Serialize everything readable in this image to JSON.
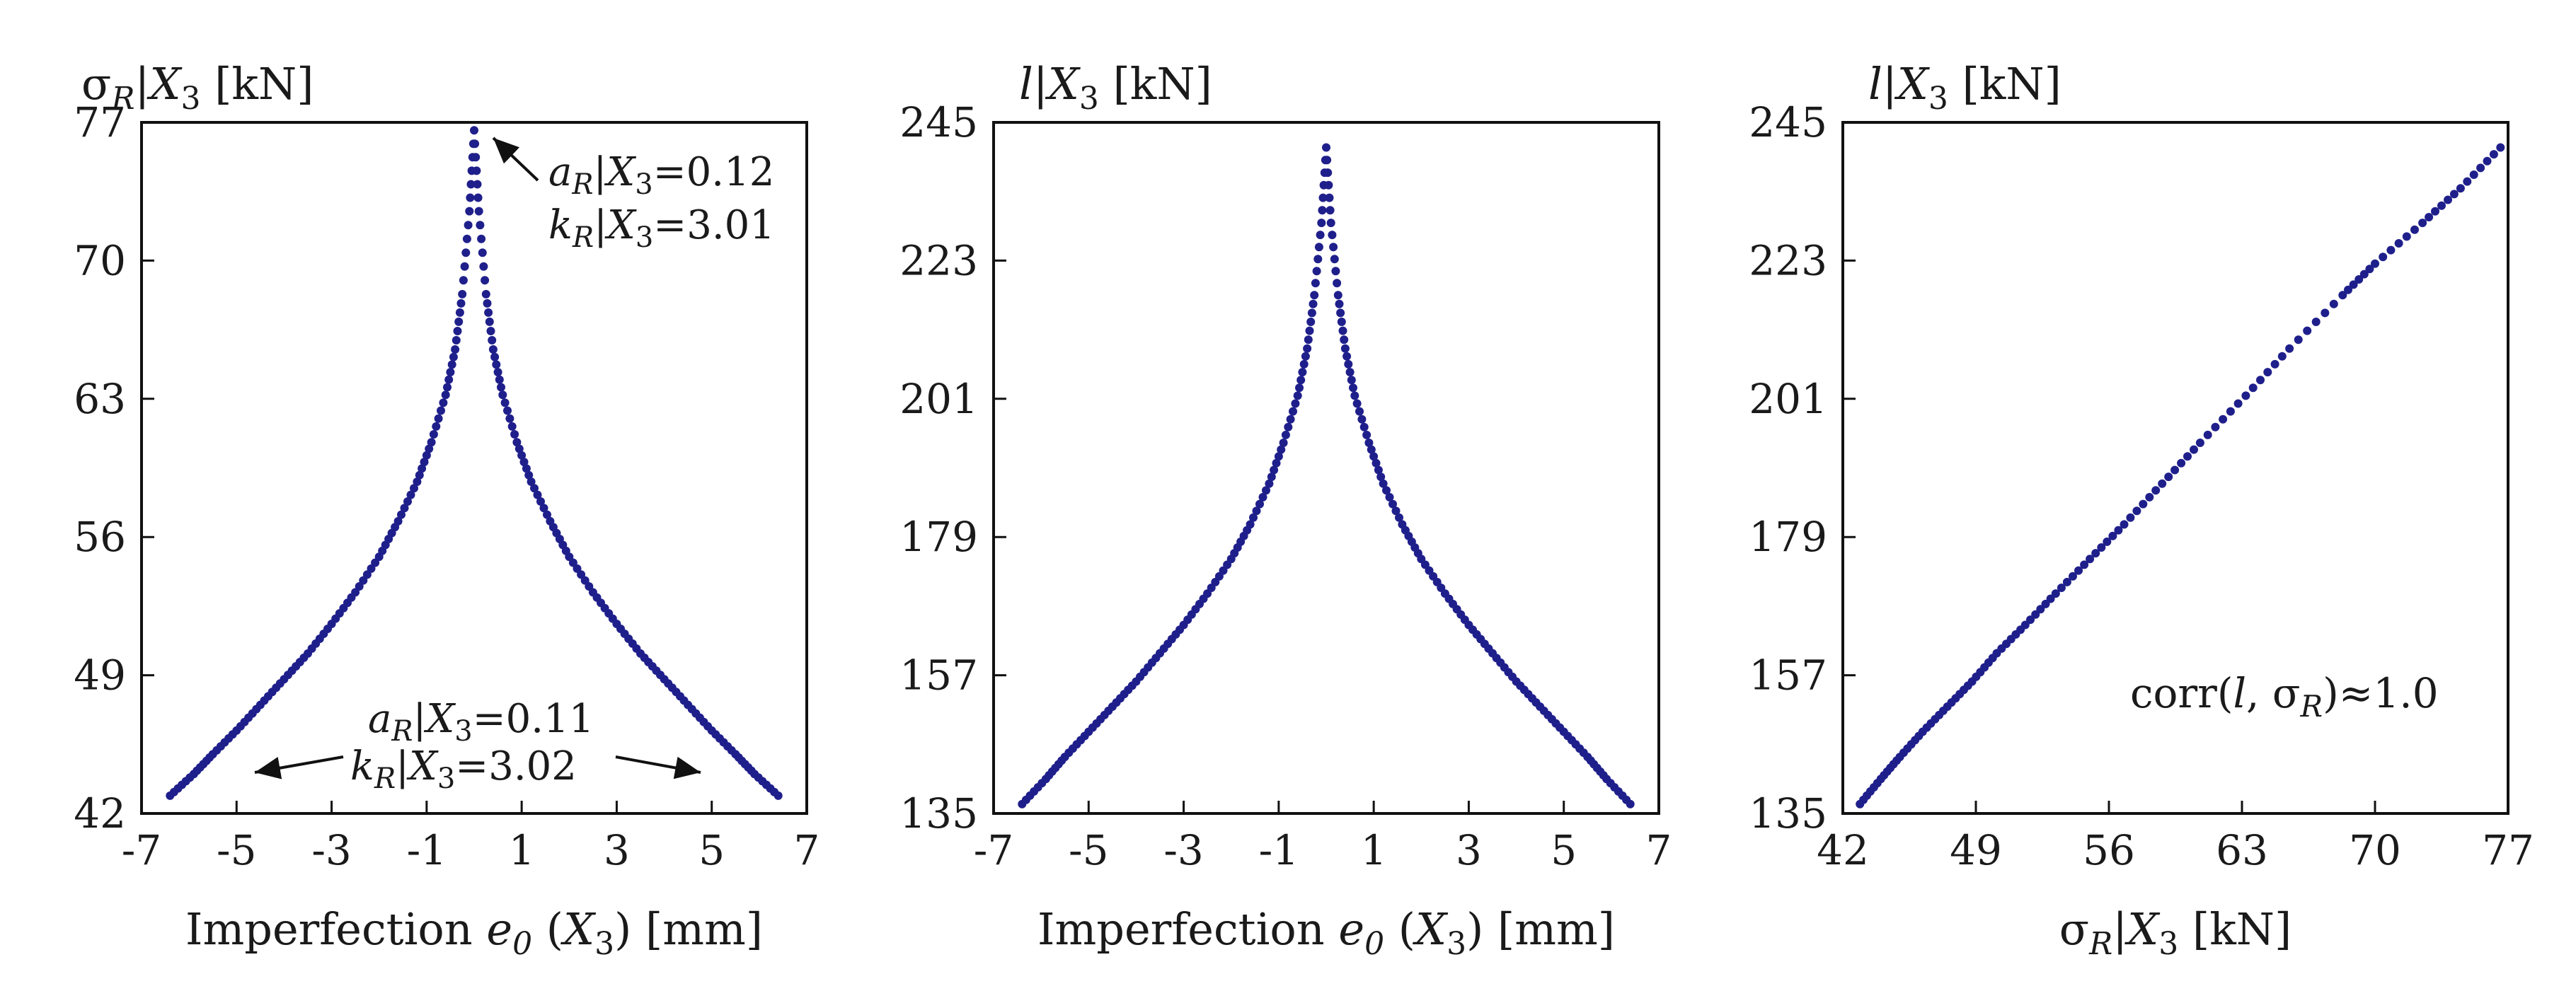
{
  "style": {
    "marker_color": "#1f1f8c",
    "axis_color": "#111111"
  },
  "chart_data": [
    {
      "type": "scatter",
      "title": "",
      "xlabel": "Imperfection e0 (X3) [mm]",
      "xlabel_parts": {
        "prefix": "Imperfection ",
        "var": "e",
        "sub": "0",
        "mid": " (",
        "var2": "X",
        "sub2": "3",
        "suffix": ") [mm]"
      },
      "ylabel": "σR|X3 [kN]",
      "ylabel_parts": {
        "prefix": "σ",
        "sub": "R",
        "bar": "|",
        "var": "X",
        "sub2": "3",
        "suffix": " [kN]"
      },
      "xlim": [
        -7,
        7
      ],
      "ylim": [
        42,
        77
      ],
      "xticks": [
        "-7",
        "-5",
        "-3",
        "-1",
        "1",
        "3",
        "5",
        "7"
      ],
      "yticks": [
        "42",
        "49",
        "56",
        "63",
        "70",
        "77"
      ],
      "grid": false,
      "series": [
        {
          "x": [
            -6.4,
            -5.9,
            -5.5,
            -5.0,
            -4.5,
            -4.0,
            -3.5,
            -3.0,
            -2.5,
            -2.0,
            -1.6,
            -1.2,
            -0.9,
            -0.6,
            -0.4,
            -0.25,
            -0.1,
            0.0,
            0.1,
            0.25,
            0.4,
            0.6,
            0.9,
            1.2,
            1.6,
            2.0,
            2.5,
            3.0,
            3.5,
            4.0,
            4.5,
            5.0,
            5.5,
            5.9,
            6.4
          ],
          "y": [
            42.9,
            44.0,
            45.0,
            46.2,
            47.5,
            48.8,
            50.1,
            51.6,
            53.2,
            55.0,
            56.8,
            58.8,
            60.8,
            63.2,
            65.5,
            68.3,
            72.5,
            76.6,
            72.5,
            68.3,
            65.5,
            63.2,
            60.8,
            58.8,
            56.8,
            55.0,
            53.2,
            51.6,
            50.1,
            48.8,
            47.5,
            46.2,
            45.0,
            44.0,
            42.9
          ]
        }
      ],
      "annotations": [
        {
          "lines": [
            {
              "var": "a",
              "sub": "R",
              "bar": "|",
              "var2": "X",
              "sub2": "3",
              "val": "=0.12"
            },
            {
              "var": "k",
              "sub": "R",
              "bar": "|",
              "var2": "X",
              "sub2": "3",
              "val": "=3.01"
            }
          ]
        },
        {
          "lines": [
            {
              "var": "a",
              "sub": "R",
              "bar": "|",
              "var2": "X",
              "sub2": "3",
              "val": "=0.11"
            },
            {
              "var": "k",
              "sub": "R",
              "bar": "|",
              "var2": "X",
              "sub2": "3",
              "val": "=3.02"
            }
          ]
        }
      ]
    },
    {
      "type": "scatter",
      "title": "",
      "xlabel": "Imperfection e0 (X3) [mm]",
      "xlabel_parts": {
        "prefix": "Imperfection ",
        "var": "e",
        "sub": "0",
        "mid": " (",
        "var2": "X",
        "sub2": "3",
        "suffix": ") [mm]"
      },
      "ylabel": "l|X3 [kN]",
      "ylabel_parts": {
        "var": "l",
        "bar": "|",
        "var2": "X",
        "sub2": "3",
        "suffix": " [kN]"
      },
      "xlim": [
        -7,
        7
      ],
      "ylim": [
        135,
        245
      ],
      "xticks": [
        "-7",
        "-5",
        "-3",
        "-1",
        "1",
        "3",
        "5",
        "7"
      ],
      "yticks": [
        "135",
        "157",
        "179",
        "201",
        "223",
        "245"
      ],
      "grid": false,
      "series": [
        {
          "x": [
            -6.4,
            -5.9,
            -5.5,
            -5.0,
            -4.5,
            -4.0,
            -3.5,
            -3.0,
            -2.5,
            -2.0,
            -1.6,
            -1.2,
            -0.9,
            -0.6,
            -0.4,
            -0.25,
            -0.1,
            0.0,
            0.1,
            0.25,
            0.4,
            0.6,
            0.9,
            1.2,
            1.6,
            2.0,
            2.5,
            3.0,
            3.5,
            4.0,
            4.5,
            5.0,
            5.5,
            5.9,
            6.4
          ],
          "y": [
            136.5,
            140.5,
            144.0,
            148.0,
            152.0,
            156.0,
            160.5,
            165.0,
            170.0,
            175.5,
            181.0,
            187.5,
            194.0,
            201.5,
            209.0,
            217.5,
            229.0,
            241.0,
            229.0,
            217.5,
            209.0,
            201.5,
            194.0,
            187.5,
            181.0,
            175.5,
            170.0,
            165.0,
            160.5,
            156.0,
            152.0,
            148.0,
            144.0,
            140.5,
            136.5
          ]
        }
      ]
    },
    {
      "type": "scatter",
      "title": "",
      "xlabel": "σR|X3 [kN]",
      "xlabel_parts": {
        "prefix": "σ",
        "sub": "R",
        "bar": "|",
        "var": "X",
        "sub2": "3",
        "suffix": " [kN]"
      },
      "ylabel": "l|X3 [kN]",
      "ylabel_parts": {
        "var": "l",
        "bar": "|",
        "var2": "X",
        "sub2": "3",
        "suffix": " [kN]"
      },
      "xlim": [
        42,
        77
      ],
      "ylim": [
        135,
        245
      ],
      "xticks": [
        "42",
        "49",
        "56",
        "63",
        "70",
        "77"
      ],
      "yticks": [
        "135",
        "157",
        "179",
        "201",
        "223",
        "245"
      ],
      "grid": false,
      "series": [
        {
          "x": [
            42.9,
            44.0,
            45.0,
            46.2,
            47.5,
            48.8,
            50.1,
            51.6,
            53.2,
            55.0,
            56.8,
            58.8,
            60.8,
            63.2,
            65.5,
            68.3,
            70.0,
            72.5,
            74.5,
            76.6
          ],
          "y": [
            136.5,
            140.5,
            144.0,
            148.0,
            152.0,
            156.0,
            160.5,
            165.0,
            170.0,
            175.5,
            181.0,
            187.5,
            194.0,
            201.5,
            209.0,
            217.5,
            222.5,
            229.0,
            234.5,
            241.0
          ]
        }
      ],
      "annotations": [
        {
          "prefix": "corr(",
          "var": "l",
          "mid": ", σ",
          "sub": "R",
          "suffix": ")≈1.0"
        }
      ]
    }
  ]
}
